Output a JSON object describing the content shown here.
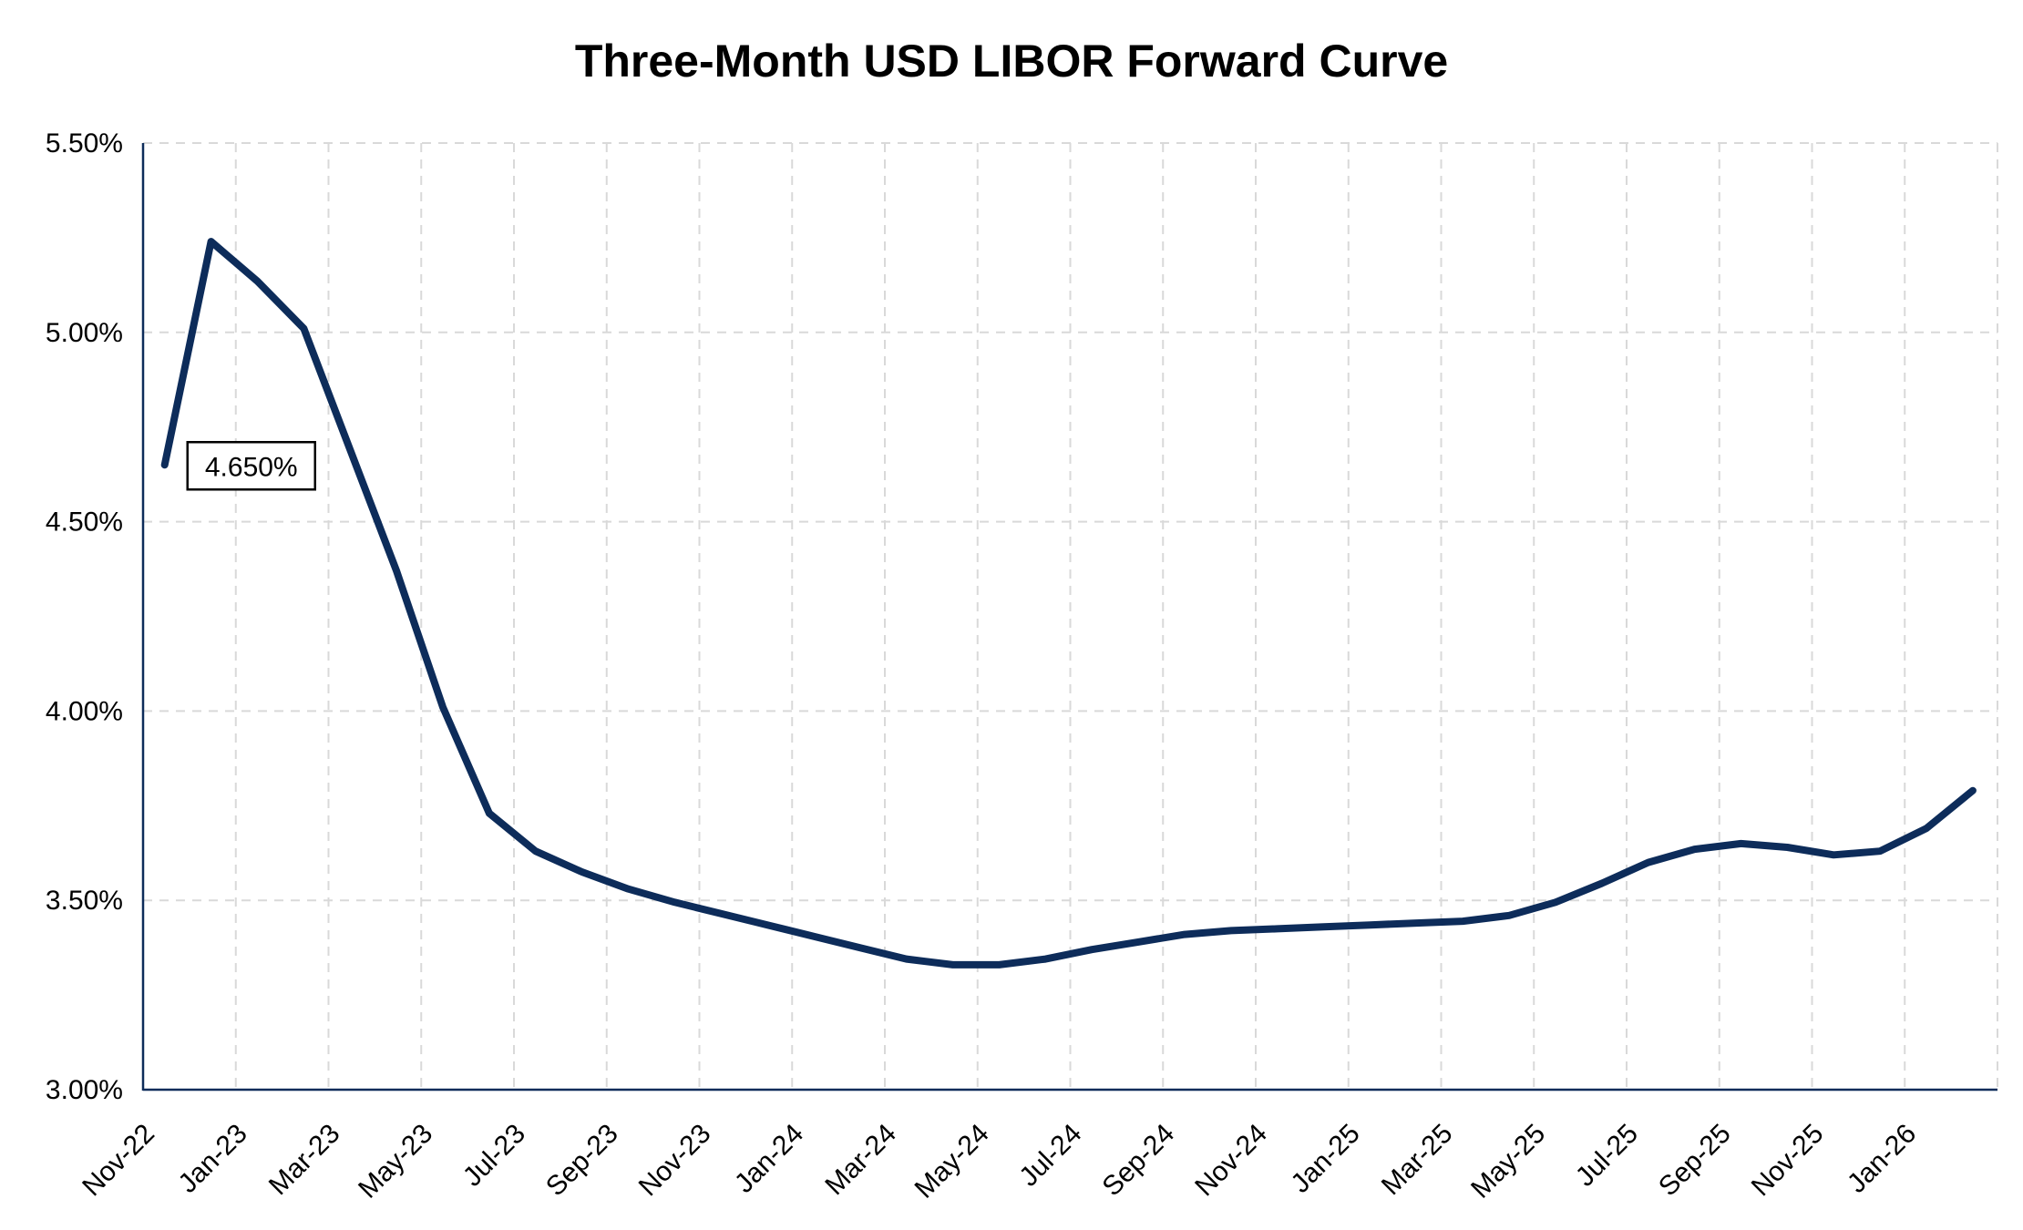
{
  "chart_data": {
    "type": "line",
    "title": "Three-Month USD LIBOR Forward Curve",
    "xlabel": "",
    "ylabel": "",
    "ylim": [
      3.0,
      5.5
    ],
    "y_ticks": [
      "3.00%",
      "3.50%",
      "4.00%",
      "4.50%",
      "5.00%",
      "5.50%"
    ],
    "x_ticks": [
      "Nov-22",
      "Jan-23",
      "Mar-23",
      "May-23",
      "Jul-23",
      "Sep-23",
      "Nov-23",
      "Jan-24",
      "Mar-24",
      "May-24",
      "Jul-24",
      "Sep-24",
      "Nov-24",
      "Jan-25",
      "Mar-25",
      "May-25",
      "Jul-25",
      "Sep-25",
      "Nov-25",
      "Jan-26"
    ],
    "x_range": [
      "2022-11",
      "2026-03"
    ],
    "grid": true,
    "legend": "none",
    "line_color": "#0d2c5a",
    "series": [
      {
        "x": [
          "2022-11-15",
          "2022-12-15",
          "2023-01-15",
          "2023-02-15",
          "2023-03-15",
          "2023-04-15",
          "2023-05-15",
          "2023-06-15",
          "2023-07-15",
          "2023-08-15",
          "2023-09-15",
          "2023-10-15",
          "2023-11-15",
          "2023-12-15",
          "2024-01-15",
          "2024-02-15",
          "2024-03-15",
          "2024-04-15",
          "2024-05-15",
          "2024-06-15",
          "2024-07-15",
          "2024-08-15",
          "2024-09-15",
          "2024-10-15",
          "2024-11-15",
          "2024-12-15",
          "2025-01-15",
          "2025-02-15",
          "2025-03-15",
          "2025-04-15",
          "2025-05-15",
          "2025-06-15",
          "2025-07-15",
          "2025-08-15",
          "2025-09-15",
          "2025-10-15",
          "2025-11-15",
          "2025-12-15",
          "2026-01-15",
          "2026-02-15"
        ],
        "values": [
          4.65,
          5.24,
          5.135,
          5.01,
          4.69,
          4.37,
          4.01,
          3.73,
          3.63,
          3.575,
          3.53,
          3.495,
          3.465,
          3.435,
          3.405,
          3.375,
          3.345,
          3.33,
          3.33,
          3.345,
          3.37,
          3.39,
          3.41,
          3.42,
          3.425,
          3.43,
          3.435,
          3.44,
          3.445,
          3.46,
          3.495,
          3.545,
          3.6,
          3.635,
          3.65,
          3.64,
          3.62,
          3.63,
          3.69,
          3.79
        ]
      }
    ],
    "annotations": [
      {
        "x": "2022-11-15",
        "value": 4.65,
        "text": "4.650%"
      }
    ]
  }
}
